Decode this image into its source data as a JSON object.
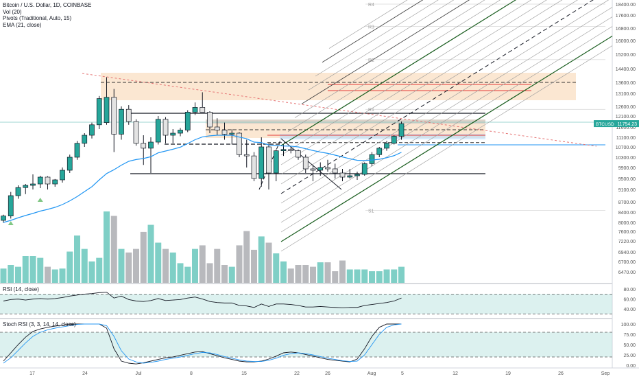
{
  "legend": {
    "title": "Bitcoin / U.S. Dollar, 1D, COINBASE",
    "vol": "Vol (20)",
    "pivots": "Pivots (Traditional, Auto, 15)",
    "ema": "EMA (21, close)"
  },
  "rsi_label": "RSI (14, close)",
  "stoch_label": "Stoch RSI (3, 3, 14, 14, close)",
  "price_tag": {
    "symbol": "BTCUSD",
    "value": "11754.23",
    "color": "#26a69a"
  },
  "colors": {
    "up": "#26a69a",
    "down": "#e3e3e3",
    "ema": "#2196f3",
    "fib_band": "#f7c99b",
    "pitchfork": "#1b5e20"
  },
  "pivot_labels": [
    {
      "label": "R4",
      "price": 18400
    },
    {
      "label": "R3",
      "price": 16900
    },
    {
      "label": "R2",
      "price": 14900
    },
    {
      "label": "R1",
      "price": 12450
    },
    {
      "label": "S1",
      "price": 8450
    }
  ],
  "chart_data": [
    {
      "type": "candlestick",
      "title": "Bitcoin / U.S. Dollar, 1D, COINBASE",
      "x_ticks": [
        "17",
        "24",
        "Jul",
        "8",
        "15",
        "22",
        "26",
        "Aug",
        "5",
        "12",
        "19",
        "26",
        "Sep"
      ],
      "y_ticks": [
        18400,
        17600,
        16800,
        16000,
        15200,
        14400,
        13600,
        13100,
        12600,
        12100,
        11600,
        11100,
        10700,
        10300,
        9900,
        9500,
        9100,
        8700,
        8400,
        8000,
        7600,
        7220,
        6940,
        6700,
        6470
      ],
      "ylim": [
        6470,
        18400
      ],
      "last_price": 11754.23,
      "candles": [
        {
          "o": 8080,
          "h": 8300,
          "l": 7980,
          "c": 8250
        },
        {
          "o": 8250,
          "h": 9020,
          "l": 8150,
          "c": 8900
        },
        {
          "o": 8900,
          "h": 9250,
          "l": 8800,
          "c": 9170
        },
        {
          "o": 9170,
          "h": 9300,
          "l": 8950,
          "c": 9250
        },
        {
          "o": 9250,
          "h": 9650,
          "l": 9100,
          "c": 9300
        },
        {
          "o": 9300,
          "h": 9600,
          "l": 9150,
          "c": 9550
        },
        {
          "o": 9550,
          "h": 9580,
          "l": 9100,
          "c": 9300
        },
        {
          "o": 9300,
          "h": 9480,
          "l": 9200,
          "c": 9450
        },
        {
          "o": 9450,
          "h": 9900,
          "l": 9350,
          "c": 9800
        },
        {
          "o": 9800,
          "h": 10400,
          "l": 9700,
          "c": 10300
        },
        {
          "o": 10300,
          "h": 10950,
          "l": 10200,
          "c": 10850
        },
        {
          "o": 10850,
          "h": 11300,
          "l": 10700,
          "c": 11200
        },
        {
          "o": 11200,
          "h": 11800,
          "l": 11050,
          "c": 11700
        },
        {
          "o": 11700,
          "h": 13000,
          "l": 11500,
          "c": 12900
        },
        {
          "o": 11800,
          "h": 13900,
          "l": 11700,
          "c": 12950
        },
        {
          "o": 12950,
          "h": 13300,
          "l": 10500,
          "c": 11250
        },
        {
          "o": 11250,
          "h": 12600,
          "l": 11000,
          "c": 12450
        },
        {
          "o": 12450,
          "h": 12650,
          "l": 11700,
          "c": 11850
        },
        {
          "o": 11850,
          "h": 11950,
          "l": 10750,
          "c": 10850
        },
        {
          "o": 10850,
          "h": 11200,
          "l": 10000,
          "c": 10650
        },
        {
          "o": 10650,
          "h": 11100,
          "l": 9700,
          "c": 10900
        },
        {
          "o": 10900,
          "h": 12100,
          "l": 10800,
          "c": 11950
        },
        {
          "o": 11950,
          "h": 12050,
          "l": 10850,
          "c": 11200
        },
        {
          "o": 11200,
          "h": 11500,
          "l": 10850,
          "c": 11300
        },
        {
          "o": 11300,
          "h": 11550,
          "l": 11150,
          "c": 11450
        },
        {
          "o": 11450,
          "h": 12400,
          "l": 11350,
          "c": 12300
        },
        {
          "o": 12300,
          "h": 12750,
          "l": 12150,
          "c": 12550
        },
        {
          "o": 12550,
          "h": 13150,
          "l": 12300,
          "c": 12300
        },
        {
          "o": 12300,
          "h": 12350,
          "l": 11300,
          "c": 11600
        },
        {
          "o": 11600,
          "h": 12000,
          "l": 11200,
          "c": 11450
        },
        {
          "o": 11450,
          "h": 11800,
          "l": 11000,
          "c": 11250
        },
        {
          "o": 11250,
          "h": 11500,
          "l": 10800,
          "c": 11300
        },
        {
          "o": 11300,
          "h": 11350,
          "l": 10300,
          "c": 10400
        },
        {
          "o": 10400,
          "h": 11000,
          "l": 9900,
          "c": 10350
        },
        {
          "o": 10350,
          "h": 10500,
          "l": 9400,
          "c": 9500
        },
        {
          "o": 9500,
          "h": 11100,
          "l": 9200,
          "c": 10700
        },
        {
          "o": 10700,
          "h": 10850,
          "l": 9100,
          "c": 9700
        },
        {
          "o": 9700,
          "h": 10600,
          "l": 9400,
          "c": 10550
        },
        {
          "o": 10550,
          "h": 10800,
          "l": 10350,
          "c": 10600
        },
        {
          "o": 10600,
          "h": 10700,
          "l": 10450,
          "c": 10550
        },
        {
          "o": 10550,
          "h": 10600,
          "l": 10200,
          "c": 10300
        },
        {
          "o": 10300,
          "h": 10400,
          "l": 9700,
          "c": 9850
        },
        {
          "o": 9850,
          "h": 10000,
          "l": 9400,
          "c": 9800
        },
        {
          "o": 9800,
          "h": 10100,
          "l": 9600,
          "c": 9900
        },
        {
          "o": 9900,
          "h": 10200,
          "l": 9750,
          "c": 9850
        },
        {
          "o": 9850,
          "h": 10050,
          "l": 9500,
          "c": 9700
        },
        {
          "o": 9700,
          "h": 9850,
          "l": 9400,
          "c": 9550
        },
        {
          "o": 9550,
          "h": 9850,
          "l": 9500,
          "c": 9600
        },
        {
          "o": 9600,
          "h": 9750,
          "l": 9450,
          "c": 9650
        },
        {
          "o": 9650,
          "h": 10100,
          "l": 9600,
          "c": 10050
        },
        {
          "o": 10050,
          "h": 10500,
          "l": 9950,
          "c": 10400
        },
        {
          "o": 10400,
          "h": 10700,
          "l": 10300,
          "c": 10650
        },
        {
          "o": 10650,
          "h": 10950,
          "l": 10550,
          "c": 10850
        },
        {
          "o": 10850,
          "h": 11200,
          "l": 10800,
          "c": 11150
        },
        {
          "o": 11150,
          "h": 11850,
          "l": 11000,
          "c": 11754
        }
      ],
      "ema": [
        8000,
        8080,
        8180,
        8270,
        8350,
        8430,
        8480,
        8540,
        8620,
        8730,
        8870,
        9030,
        9200,
        9450,
        9680,
        9820,
        9990,
        10140,
        10210,
        10250,
        10320,
        10470,
        10540,
        10610,
        10690,
        10840,
        11000,
        11120,
        11170,
        11200,
        11200,
        11200,
        11110,
        11040,
        10900,
        10880,
        10780,
        10760,
        10740,
        10730,
        10700,
        10630,
        10560,
        10500,
        10450,
        10380,
        10310,
        10240,
        10180,
        10170,
        10190,
        10220,
        10280,
        10360,
        10490
      ],
      "fib_levels": [
        13600,
        13100,
        11750,
        11600,
        11350,
        11200,
        11050
      ]
    },
    {
      "type": "bar",
      "title": "Vol (20)",
      "values": [
        16,
        20,
        18,
        30,
        30,
        28,
        18,
        15,
        16,
        35,
        53,
        38,
        24,
        28,
        80,
        75,
        38,
        34,
        38,
        57,
        65,
        45,
        38,
        34,
        22,
        18,
        38,
        42,
        22,
        38,
        20,
        18,
        42,
        58,
        37,
        52,
        45,
        33,
        24,
        16,
        20,
        20,
        18,
        23,
        23,
        13,
        25,
        15,
        15,
        15,
        13,
        13,
        15,
        15,
        18
      ]
    },
    {
      "type": "line",
      "title": "RSI (14, close)",
      "y_ticks": [
        80,
        60,
        40
      ],
      "ylim": [
        22,
        90
      ],
      "bands": [
        70,
        30
      ],
      "values": [
        56,
        59,
        60,
        58,
        60,
        61,
        60,
        61,
        63,
        66,
        68,
        70,
        71,
        73,
        74,
        62,
        66,
        59,
        56,
        55,
        57,
        61,
        57,
        58,
        59,
        62,
        64,
        60,
        55,
        53,
        52,
        52,
        47,
        46,
        43,
        50,
        45,
        50,
        50,
        49,
        47,
        44,
        44,
        45,
        44,
        43,
        42,
        43,
        43,
        47,
        49,
        51,
        53,
        56,
        62
      ]
    },
    {
      "type": "line",
      "title": "Stoch RSI (3, 3, 14, 14, close)",
      "y_ticks": [
        100.0,
        75.0,
        50.0,
        25.0,
        0.0
      ],
      "ylim": [
        0,
        100
      ],
      "bands": [
        80,
        20
      ],
      "series": [
        {
          "values": [
            10,
            30,
            50,
            68,
            82,
            88,
            92,
            95,
            97,
            100,
            100,
            100,
            100,
            100,
            90,
            40,
            10,
            5,
            3,
            6,
            10,
            14,
            18,
            20,
            24,
            28,
            32,
            33,
            28,
            23,
            18,
            14,
            10,
            8,
            8,
            10,
            15,
            22,
            30,
            32,
            30,
            26,
            22,
            18,
            14,
            12,
            10,
            8,
            15,
            40,
            70,
            92,
            100,
            100,
            100
          ]
        },
        {
          "values": [
            5,
            18,
            36,
            54,
            70,
            80,
            86,
            90,
            93,
            96,
            99,
            100,
            100,
            100,
            96,
            70,
            35,
            15,
            8,
            5,
            7,
            10,
            14,
            17,
            20,
            24,
            28,
            31,
            30,
            26,
            21,
            17,
            13,
            10,
            9,
            9,
            12,
            17,
            24,
            28,
            30,
            28,
            25,
            21,
            17,
            14,
            11,
            9,
            10,
            25,
            50,
            75,
            92,
            98,
            100
          ]
        }
      ]
    }
  ]
}
